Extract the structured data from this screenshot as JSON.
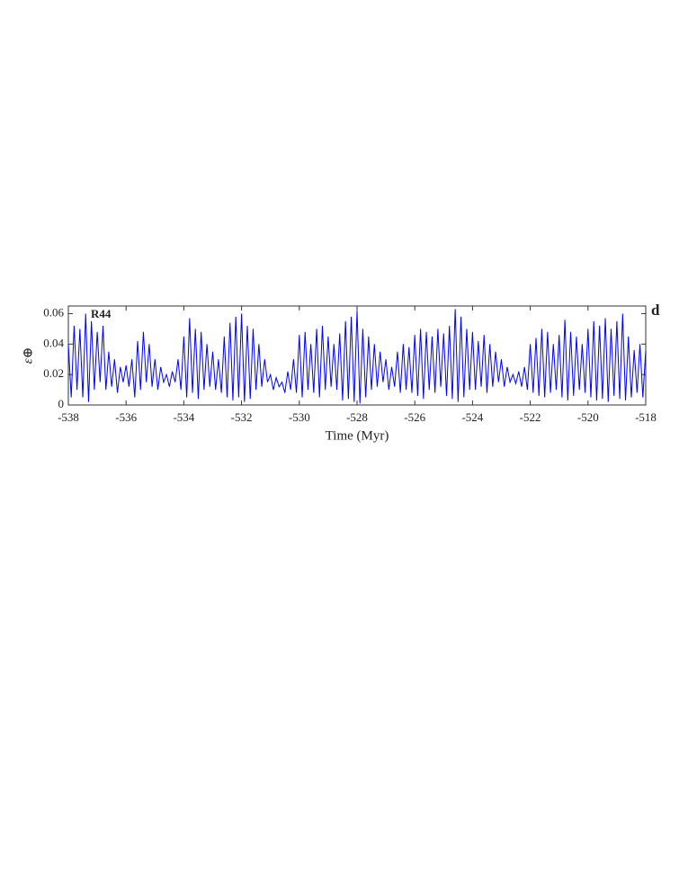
{
  "chart_data": {
    "type": "line",
    "xlabel": "Time (Myr)",
    "ylabel": "ε⊕",
    "annotations": [
      "R44",
      "d"
    ],
    "color": "#0000ff",
    "xlim": [
      -538,
      -518
    ],
    "xticks": [
      -538,
      -536,
      -534,
      -532,
      -530,
      -528,
      -526,
      -524,
      -522,
      -520,
      -518
    ],
    "ylim": [
      0,
      0.065
    ],
    "yticks": [
      0,
      0.02,
      0.04,
      0.06
    ],
    "x": [
      -538,
      -537.9,
      -537.8,
      -537.7,
      -537.6,
      -537.5,
      -537.4,
      -537.3,
      -537.2,
      -537.1,
      -537,
      -536.9,
      -536.8,
      -536.7,
      -536.6,
      -536.5,
      -536.4,
      -536.3,
      -536.2,
      -536.1,
      -536,
      -535.9,
      -535.8,
      -535.7,
      -535.6,
      -535.5,
      -535.4,
      -535.3,
      -535.2,
      -535.1,
      -535,
      -534.9,
      -534.8,
      -534.7,
      -534.6,
      -534.5,
      -534.4,
      -534.3,
      -534.2,
      -534.1,
      -534,
      -533.9,
      -533.8,
      -533.7,
      -533.6,
      -533.5,
      -533.4,
      -533.3,
      -533.2,
      -533.1,
      -533,
      -532.9,
      -532.8,
      -532.7,
      -532.6,
      -532.5,
      -532.4,
      -532.3,
      -532.2,
      -532.1,
      -532,
      -531.9,
      -531.8,
      -531.7,
      -531.6,
      -531.5,
      -531.4,
      -531.3,
      -531.2,
      -531.1,
      -531,
      -530.9,
      -530.8,
      -530.7,
      -530.6,
      -530.5,
      -530.4,
      -530.3,
      -530.2,
      -530.1,
      -530,
      -529.9,
      -529.8,
      -529.7,
      -529.6,
      -529.5,
      -529.4,
      -529.3,
      -529.2,
      -529.1,
      -529,
      -528.9,
      -528.8,
      -528.7,
      -528.6,
      -528.5,
      -528.4,
      -528.3,
      -528.2,
      -528.1,
      -528,
      -527.9,
      -527.8,
      -527.7,
      -527.6,
      -527.5,
      -527.4,
      -527.3,
      -527.2,
      -527.1,
      -527,
      -526.9,
      -526.8,
      -526.7,
      -526.6,
      -526.5,
      -526.4,
      -526.3,
      -526.2,
      -526.1,
      -526,
      -525.9,
      -525.8,
      -525.7,
      -525.6,
      -525.5,
      -525.4,
      -525.3,
      -525.2,
      -525.1,
      -525,
      -524.9,
      -524.8,
      -524.7,
      -524.6,
      -524.5,
      -524.4,
      -524.3,
      -524.2,
      -524.1,
      -524,
      -523.9,
      -523.8,
      -523.7,
      -523.6,
      -523.5,
      -523.4,
      -523.3,
      -523.2,
      -523.1,
      -523,
      -522.9,
      -522.8,
      -522.7,
      -522.6,
      -522.5,
      -522.4,
      -522.3,
      -522.2,
      -522.1,
      -522,
      -521.9,
      -521.8,
      -521.7,
      -521.6,
      -521.5,
      -521.4,
      -521.3,
      -521.2,
      -521.1,
      -521,
      -520.9,
      -520.8,
      -520.7,
      -520.6,
      -520.5,
      -520.4,
      -520.3,
      -520.2,
      -520.1,
      -520,
      -519.9,
      -519.8,
      -519.7,
      -519.6,
      -519.5,
      -519.4,
      -519.3,
      -519.2,
      -519.1,
      -519,
      -518.9,
      -518.8,
      -518.7,
      -518.6,
      -518.5,
      -518.4,
      -518.3,
      -518.2,
      -518.1,
      -518
    ],
    "values": [
      0.04,
      0.005,
      0.052,
      0.01,
      0.05,
      0.005,
      0.06,
      0.002,
      0.055,
      0.01,
      0.048,
      0.015,
      0.052,
      0.01,
      0.035,
      0.012,
      0.03,
      0.008,
      0.025,
      0.015,
      0.026,
      0.012,
      0.03,
      0.005,
      0.042,
      0.01,
      0.048,
      0.015,
      0.04,
      0.012,
      0.03,
      0.01,
      0.025,
      0.015,
      0.02,
      0.012,
      0.022,
      0.015,
      0.03,
      0.01,
      0.045,
      0.005,
      0.057,
      0.008,
      0.05,
      0.004,
      0.048,
      0.01,
      0.04,
      0.012,
      0.035,
      0.01,
      0.03,
      0.008,
      0.045,
      0.005,
      0.054,
      0.003,
      0.058,
      0.005,
      0.06,
      0.002,
      0.052,
      0.004,
      0.05,
      0.01,
      0.04,
      0.012,
      0.03,
      0.015,
      0.02,
      0.01,
      0.018,
      0.012,
      0.015,
      0.008,
      0.022,
      0.01,
      0.03,
      0.008,
      0.046,
      0.005,
      0.048,
      0.01,
      0.04,
      0.008,
      0.05,
      0.005,
      0.052,
      0.01,
      0.045,
      0.012,
      0.04,
      0.01,
      0.047,
      0.003,
      0.055,
      0.004,
      0.058,
      0.002,
      0.062,
      0.001,
      0.05,
      0.005,
      0.045,
      0.01,
      0.04,
      0.012,
      0.035,
      0.015,
      0.03,
      0.01,
      0.025,
      0.012,
      0.035,
      0.008,
      0.04,
      0.01,
      0.038,
      0.008,
      0.046,
      0.006,
      0.05,
      0.004,
      0.048,
      0.01,
      0.045,
      0.008,
      0.05,
      0.012,
      0.047,
      0.006,
      0.052,
      0.004,
      0.063,
      0.002,
      0.058,
      0.005,
      0.05,
      0.01,
      0.048,
      0.01,
      0.042,
      0.012,
      0.046,
      0.008,
      0.04,
      0.012,
      0.035,
      0.015,
      0.03,
      0.012,
      0.025,
      0.015,
      0.02,
      0.014,
      0.022,
      0.012,
      0.025,
      0.01,
      0.04,
      0.008,
      0.044,
      0.006,
      0.05,
      0.005,
      0.048,
      0.008,
      0.04,
      0.01,
      0.046,
      0.005,
      0.056,
      0.003,
      0.048,
      0.006,
      0.045,
      0.01,
      0.04,
      0.008,
      0.05,
      0.005,
      0.055,
      0.003,
      0.052,
      0.004,
      0.057,
      0.002,
      0.05,
      0.006,
      0.055,
      0.004,
      0.06,
      0.003,
      0.045,
      0.005,
      0.036,
      0.008,
      0.04,
      0.005,
      0.036
    ]
  }
}
